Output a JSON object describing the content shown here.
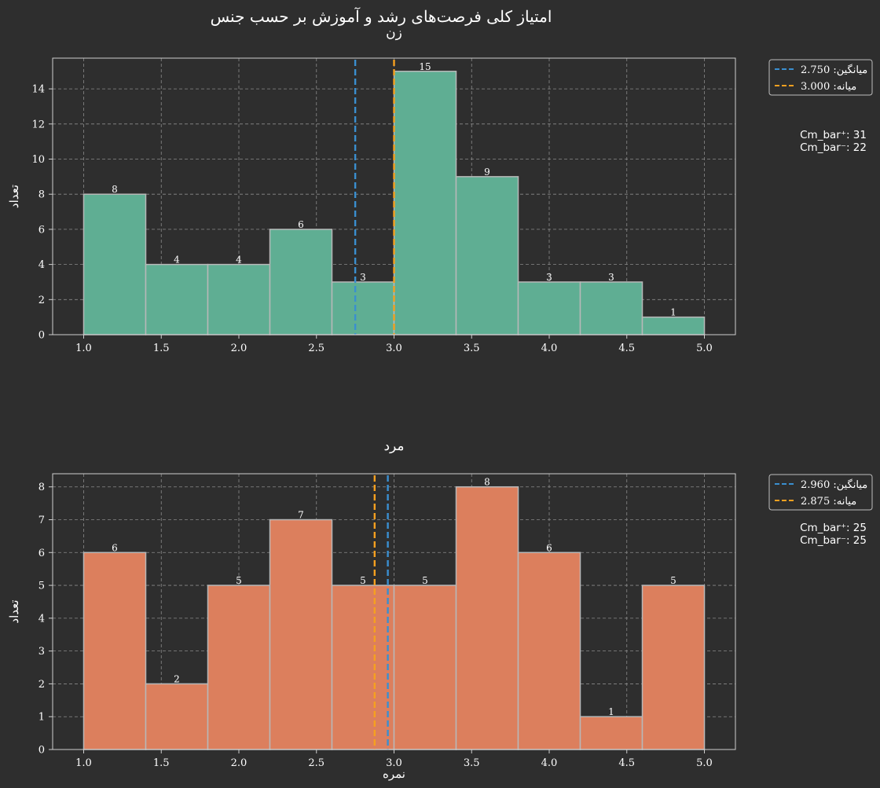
{
  "figure": {
    "title": "امتیاز کلی فرصت‌های رشد و آموزش بر حسب جنس"
  },
  "chart_data": [
    {
      "type": "bar",
      "title": "زن",
      "ylabel": "تعداد",
      "xlabel": "",
      "bin_edges": [
        1.0,
        1.4,
        1.8,
        2.2,
        2.6,
        3.0,
        3.4,
        3.8,
        4.2,
        4.6,
        5.0
      ],
      "values": [
        8,
        4,
        4,
        6,
        3,
        15,
        9,
        3,
        3,
        1
      ],
      "bar_color": "#5fae93",
      "xlim": [
        0.8,
        5.2
      ],
      "ylim": [
        0,
        15.75
      ],
      "xticks": [
        "1.0",
        "1.5",
        "2.0",
        "2.5",
        "3.0",
        "3.5",
        "4.0",
        "4.5",
        "5.0"
      ],
      "yticks": [
        0,
        2,
        4,
        6,
        8,
        10,
        12,
        14
      ],
      "grid": true,
      "mean": {
        "label": "میانگین: 2.750",
        "value": 2.75,
        "color": "#3a8fd0"
      },
      "median": {
        "label": "میانه: 3.000",
        "value": 3.0,
        "color": "#f5a020"
      },
      "legend_position": "outside-upper-right",
      "annotations": [
        "Cm_bar⁺: 31",
        "Cm_bar⁻: 22"
      ]
    },
    {
      "type": "bar",
      "title": "مرد",
      "ylabel": "تعداد",
      "xlabel": "نمره",
      "bin_edges": [
        1.0,
        1.4,
        1.8,
        2.2,
        2.6,
        3.0,
        3.4,
        3.8,
        4.2,
        4.6,
        5.0
      ],
      "values": [
        6,
        2,
        5,
        7,
        5,
        5,
        8,
        6,
        1,
        5
      ],
      "bar_color": "#dc7f5d",
      "xlim": [
        0.8,
        5.2
      ],
      "ylim": [
        0,
        8.4
      ],
      "xticks": [
        "1.0",
        "1.5",
        "2.0",
        "2.5",
        "3.0",
        "3.5",
        "4.0",
        "4.5",
        "5.0"
      ],
      "yticks": [
        0,
        1,
        2,
        3,
        4,
        5,
        6,
        7,
        8
      ],
      "grid": true,
      "mean": {
        "label": "میانگین: 2.960",
        "value": 2.96,
        "color": "#3a8fd0"
      },
      "median": {
        "label": "میانه: 2.875",
        "value": 2.875,
        "color": "#f5a020"
      },
      "legend_position": "outside-upper-right",
      "annotations": [
        "Cm_bar⁺: 25",
        "Cm_bar⁻: 25"
      ]
    }
  ]
}
